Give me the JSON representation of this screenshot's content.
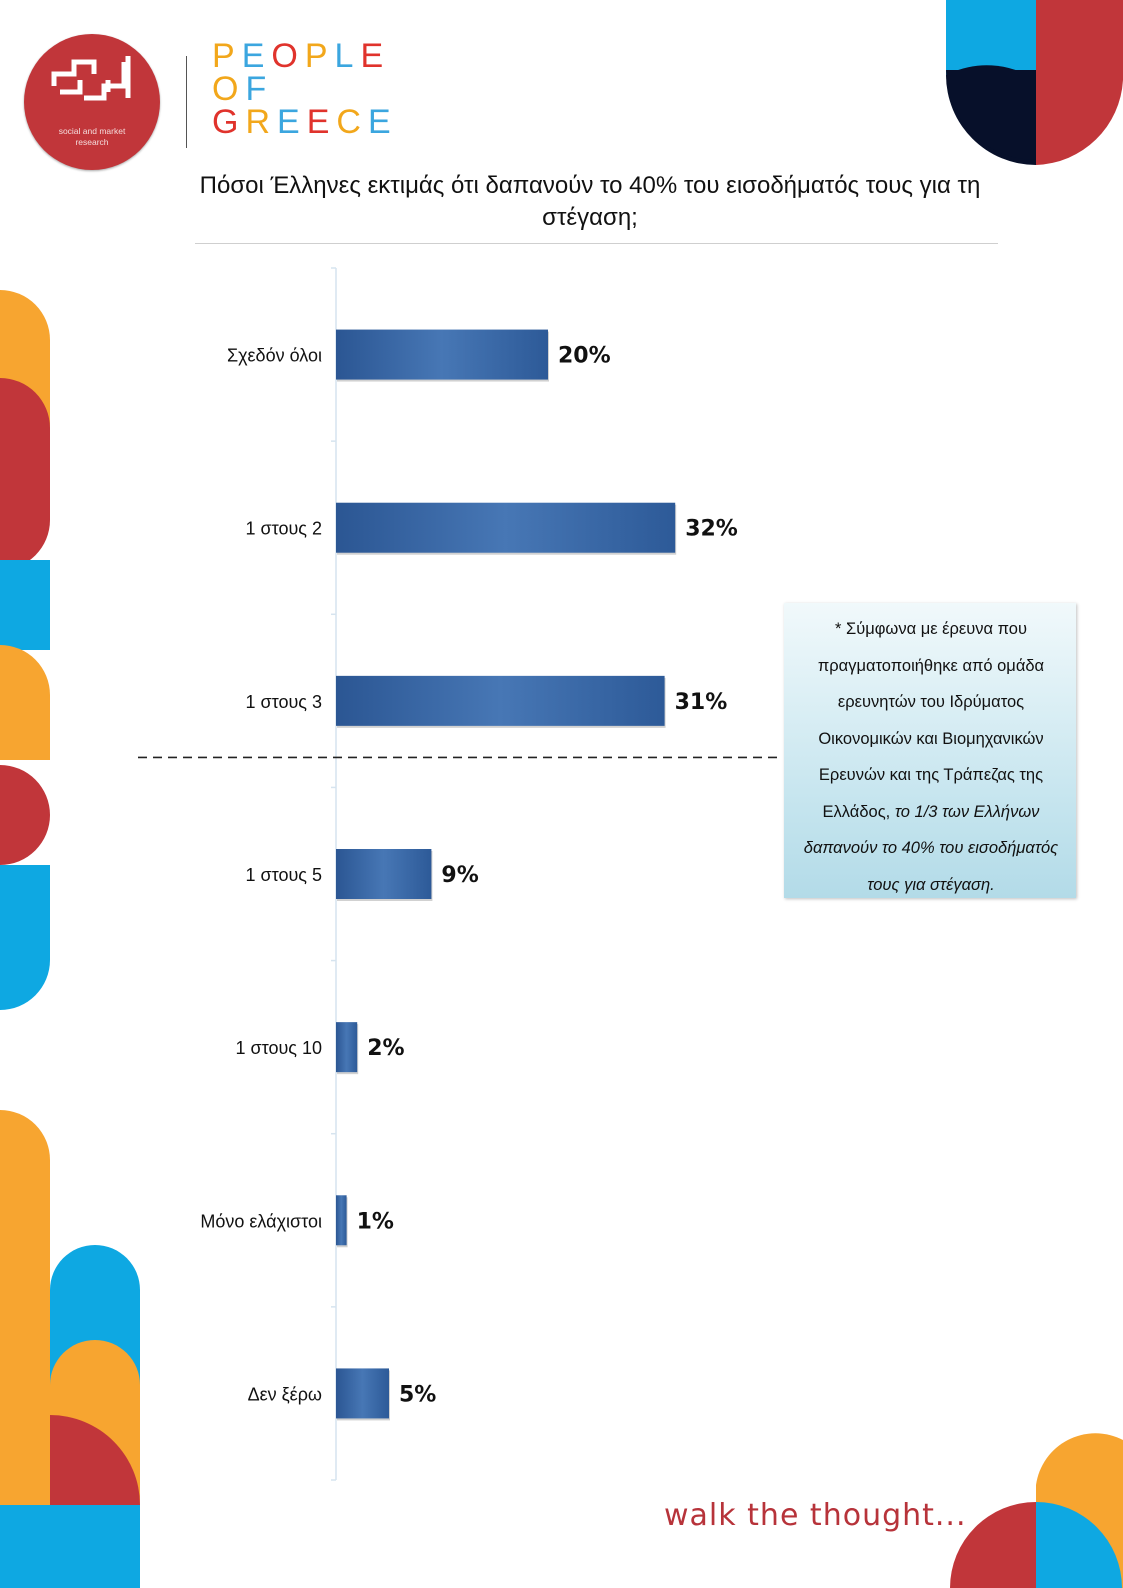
{
  "brand": {
    "logo_icon": "sed-logo-icon",
    "logo_caption_line1": "social and market",
    "logo_caption_line2": "research",
    "people_of_greece": [
      "PEOPLE",
      "OF",
      "GREECE"
    ],
    "tagline": "walk the thought..."
  },
  "colors": {
    "red": "#c1363a",
    "orange": "#f7a530",
    "blue": "#0ea8e2",
    "navy": "#07102a",
    "bar": "#3a6aa8",
    "pog_letters": [
      "#f2a71b",
      "#3ba6df",
      "#e0332c",
      "#f2a71b",
      "#3ba6df",
      "#e0332c"
    ]
  },
  "chart_data": {
    "type": "bar",
    "orientation": "horizontal",
    "title": "Πόσοι Έλληνες εκτιμάς ότι δαπανούν το 40% του εισοδήματός τους για τη στέγαση;",
    "categories": [
      "Σχεδόν όλοι",
      "1 στους 2",
      "1 στους 3",
      "1 στους 5",
      "1 στους 10",
      "Μόνο ελάχιστοι",
      "Δεν ξέρω"
    ],
    "values": [
      20,
      32,
      31,
      9,
      2,
      1,
      5
    ],
    "value_labels": [
      "20%",
      "32%",
      "31%",
      "9%",
      "2%",
      "1%",
      "5%"
    ],
    "unit": "%",
    "xlim": [
      0,
      40
    ],
    "grid": false,
    "reference_line": "dashed line below '1 στους 3'"
  },
  "note": {
    "prefix": "* Σύμφωνα με έρευνα που πραγματοποιήθηκε από ομάδα ερευνητών του Ιδρύματος Οικονομικών και Βιομηχανικών Ερευνών και της Τράπεζας της Ελλάδος, ",
    "emphasis": "το 1/3 των Ελλήνων δαπανούν το 40% του εισοδήματός τους για στέγαση."
  }
}
